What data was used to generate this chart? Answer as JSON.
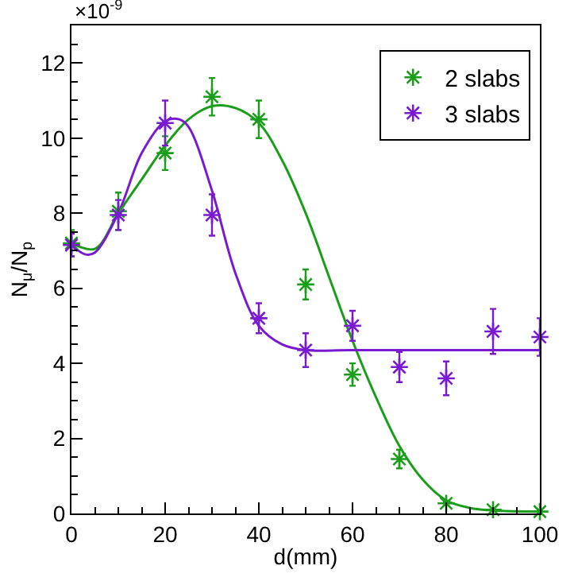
{
  "chart_data": {
    "type": "scatter",
    "xlabel": "d(mm)",
    "ylabel": "N$_{μ}$/N$_{p}$",
    "annotations": [
      "×10$^{-9}$"
    ],
    "x": [
      0,
      10,
      20,
      30,
      40,
      50,
      60,
      70,
      80,
      90,
      100
    ],
    "series": [
      {
        "name": "2 slabs",
        "color": "#1a9e1a",
        "values": [
          7.2,
          8.05,
          9.6,
          11.1,
          10.5,
          6.1,
          3.7,
          1.45,
          0.27,
          0.1,
          0.05
        ],
        "errors": [
          0.35,
          0.5,
          0.45,
          0.5,
          0.5,
          0.4,
          0.3,
          0.25,
          0.05,
          null,
          null
        ]
      },
      {
        "name": "3 slabs",
        "color": "#7a1ad0",
        "values": [
          7.15,
          7.95,
          10.4,
          7.95,
          5.2,
          4.35,
          5.0,
          3.9,
          3.6,
          4.85,
          4.7
        ],
        "errors": [
          0.3,
          0.4,
          0.6,
          0.55,
          0.4,
          0.45,
          0.4,
          0.4,
          0.45,
          0.6,
          0.5
        ]
      },
      {
        "type": "line",
        "marker": "none",
        "color": "#1a9e1a",
        "x": [
          0,
          5,
          10,
          15,
          20,
          25,
          30,
          35,
          40,
          45,
          50,
          55,
          60,
          65,
          70,
          75,
          80,
          85,
          90,
          100
        ],
        "values": [
          7.2,
          7.05,
          8.0,
          8.9,
          9.8,
          10.5,
          10.85,
          10.8,
          10.4,
          9.4,
          8.0,
          6.3,
          4.6,
          3.1,
          1.8,
          0.9,
          0.35,
          0.15,
          0.08,
          0.05
        ]
      },
      {
        "type": "line",
        "marker": "none",
        "color": "#7a1ad0",
        "x": [
          0,
          3,
          5,
          10,
          15,
          20,
          23,
          25,
          30,
          35,
          40,
          45,
          50,
          60,
          100
        ],
        "values": [
          7.15,
          6.9,
          6.95,
          8.0,
          9.6,
          10.45,
          10.5,
          10.3,
          8.6,
          6.4,
          5.0,
          4.5,
          4.35,
          4.35,
          4.35
        ]
      }
    ],
    "marker": "cross",
    "xlim": [
      0,
      100
    ],
    "xticks": [
      0,
      20,
      40,
      60,
      80,
      100
    ],
    "ylim": [
      0,
      13
    ],
    "yticks": [
      0,
      2,
      4,
      6,
      8,
      10,
      12
    ],
    "legend": "top right"
  }
}
